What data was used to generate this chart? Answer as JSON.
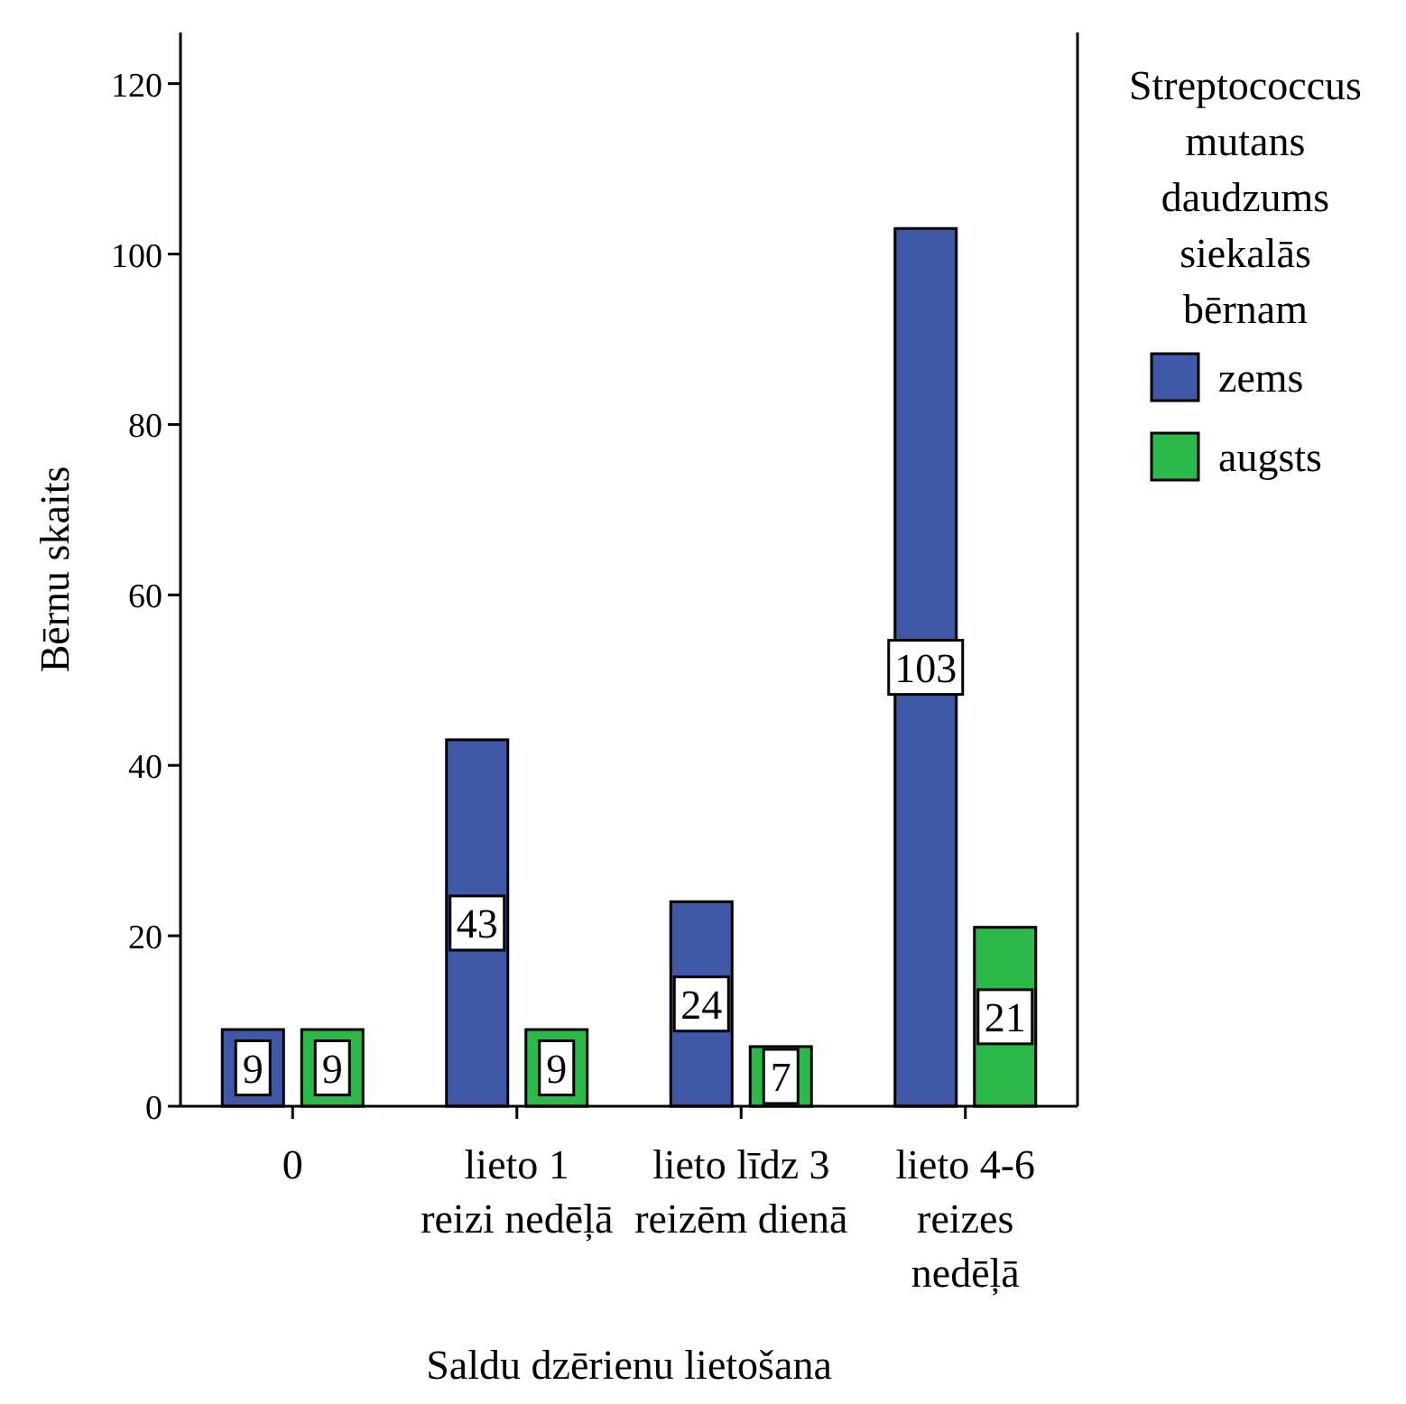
{
  "chart_data": {
    "type": "bar",
    "xlabel": "Saldu dzērienu lietošana",
    "ylabel": "Bērnu skaits",
    "legend_title": "Streptococcus mutans daudzums siekalās bērnam",
    "categories": [
      "0",
      "lieto 1 reizi nedēļā",
      "lieto līdz 3 reizēm dienā",
      "lieto 4-6 reizes nedēļā"
    ],
    "series": [
      {
        "name": "zems",
        "color": "#3f58a8",
        "values": [
          9,
          43,
          24,
          103
        ]
      },
      {
        "name": "augsts",
        "color": "#2db84a",
        "values": [
          9,
          9,
          7,
          21
        ]
      }
    ],
    "ylim": [
      0,
      126
    ],
    "yticks": [
      0,
      20,
      40,
      60,
      80,
      100,
      120
    ],
    "data_labels": true,
    "legend": "right",
    "grid": false
  }
}
